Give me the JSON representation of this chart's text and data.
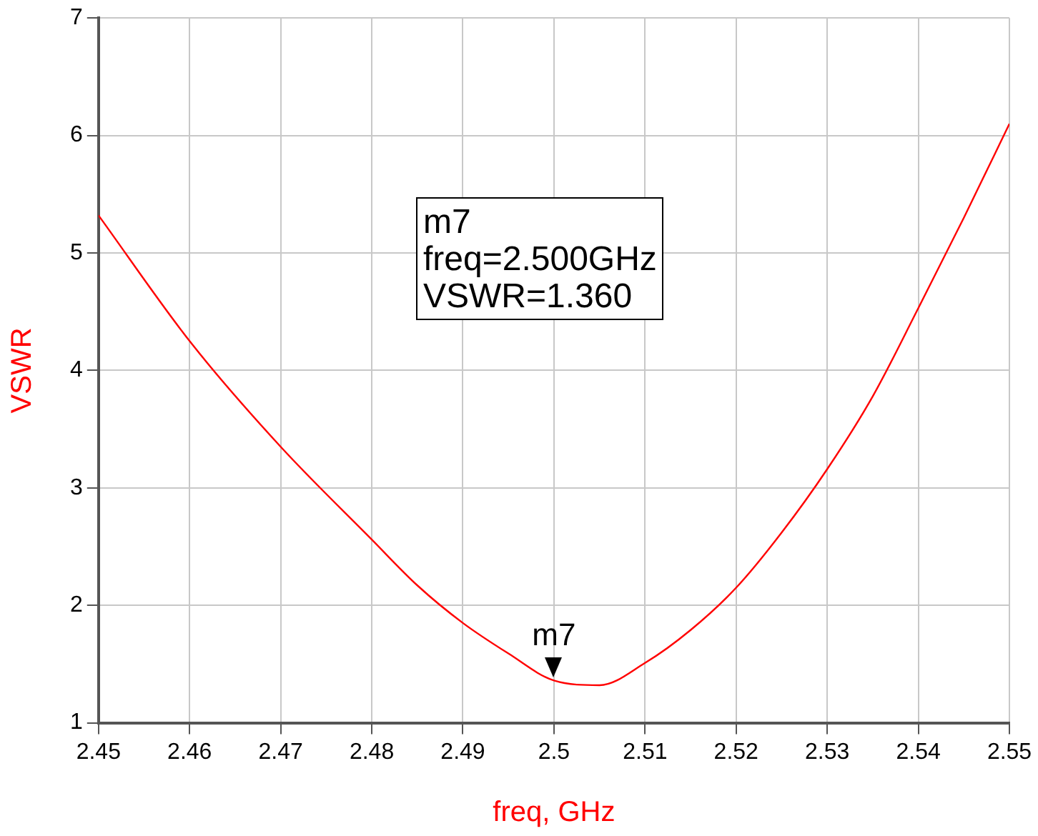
{
  "chart_data": {
    "type": "line",
    "xlabel": "freq, GHz",
    "ylabel": "VSWR",
    "x": [
      2.45,
      2.46,
      2.47,
      2.48,
      2.485,
      2.49,
      2.495,
      2.5,
      2.505,
      2.51,
      2.515,
      2.52,
      2.525,
      2.53,
      2.535,
      2.54,
      2.545,
      2.55
    ],
    "series": [
      {
        "color": "#ff0000",
        "values": [
          5.32,
          4.25,
          3.35,
          2.56,
          2.17,
          1.85,
          1.59,
          1.36,
          1.32,
          1.51,
          1.79,
          2.15,
          2.62,
          3.16,
          3.78,
          4.53,
          5.3,
          6.1
        ]
      }
    ],
    "xlim": [
      2.45,
      2.55
    ],
    "xticks": [
      2.45,
      2.46,
      2.47,
      2.48,
      2.49,
      2.5,
      2.51,
      2.52,
      2.53,
      2.54,
      2.55
    ],
    "ylim": [
      1,
      7
    ],
    "yticks": [
      1,
      2,
      3,
      4,
      5,
      6,
      7
    ],
    "grid": true,
    "legend": false,
    "marker": "none",
    "line_style": "solid",
    "annotations": [
      {
        "text": "m7",
        "x": 2.5,
        "y": 1.36
      },
      "m7\nfreq=2.500GHz\nVSWR=1.360"
    ]
  }
}
